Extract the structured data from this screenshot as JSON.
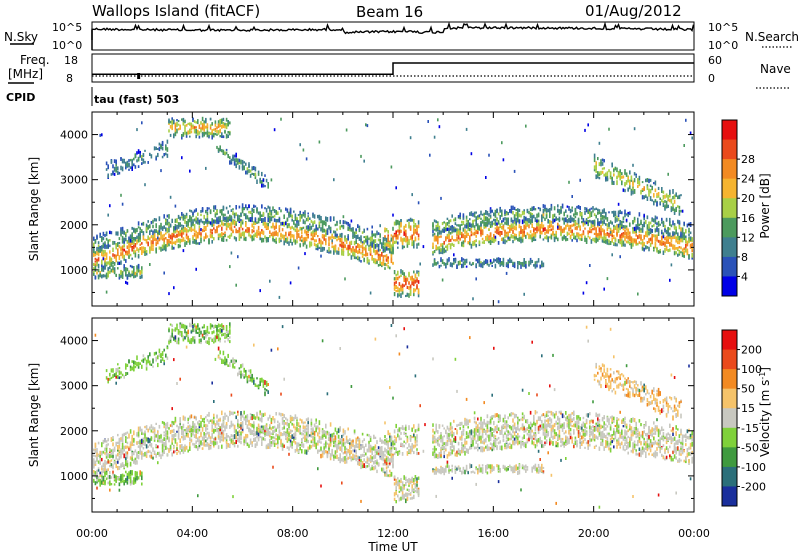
{
  "chart_data": [
    {
      "type": "line",
      "header_left": "Wallops Island (fitACF)",
      "header_center": "Beam 16",
      "header_right": "01/Aug/2012",
      "left_label": "N.Sky",
      "right_label": "N.Search",
      "left_ticks": [
        "10^5",
        "10^0"
      ],
      "right_ticks": [
        "10^5",
        "10^0"
      ],
      "note": ""
    },
    {
      "type": "line",
      "left_label_top": "Freq.",
      "left_label_unit": "[MHz]",
      "right_label": "Nave",
      "left_ticks": [
        "18",
        "8"
      ],
      "right_ticks": [
        "60",
        "0"
      ],
      "freq_series": {
        "x_hours": [
          0,
          12.0,
          12.0,
          24
        ],
        "y_mhz": [
          10.8,
          10.8,
          14.8,
          14.8
        ],
        "ylim": [
          8,
          18
        ]
      },
      "nave_series": {
        "ylim": [
          0,
          60
        ]
      }
    },
    {
      "type": "table",
      "cpid_label": "CPID",
      "cpid_value": "tau (fast) 503"
    },
    {
      "type": "heatmap",
      "ylabel": "Slant Range [km]",
      "y_ticks": [
        "1000",
        "2000",
        "3000",
        "4000"
      ],
      "ylim": [
        200,
        4500
      ],
      "xlim": [
        0,
        24
      ],
      "colorbar_label": "Power [dB]",
      "colorbar_ticks": [
        "4",
        "8",
        "12",
        "16",
        "20",
        "24",
        "28"
      ],
      "colorbar_colors": [
        "#0000e6",
        "#2a52b8",
        "#3f7f8f",
        "#4c9a5e",
        "#a8cf46",
        "#f5b430",
        "#f28a22",
        "#ea4a1c",
        "#e60f0f"
      ],
      "colorbar_range": [
        0,
        32
      ]
    },
    {
      "type": "heatmap",
      "ylabel": "Slant Range [km]",
      "y_ticks": [
        "1000",
        "2000",
        "3000",
        "4000"
      ],
      "ylim": [
        200,
        4500
      ],
      "xlim": [
        0,
        24
      ],
      "colorbar_label": "Velocity [m s",
      "colorbar_label_sup": "-1",
      "colorbar_label_end": "]",
      "colorbar_ticks": [
        "200",
        "100",
        "50",
        "15",
        "-15",
        "-50",
        "-100",
        "-200"
      ],
      "colorbar_colors": [
        "#1a2f9c",
        "#2b6f7a",
        "#3f9a3f",
        "#7fd13a",
        "#c8c8c0",
        "#f5c36a",
        "#f28a22",
        "#ea4a1c",
        "#e60f0f"
      ]
    }
  ],
  "x_axis": {
    "tick_labels": [
      "00:00",
      "04:00",
      "08:00",
      "12:00",
      "16:00",
      "20:00",
      "00:00"
    ],
    "xlabel": "Time UT"
  },
  "colors": {
    "axes": "#000000",
    "background": "#ffffff"
  }
}
